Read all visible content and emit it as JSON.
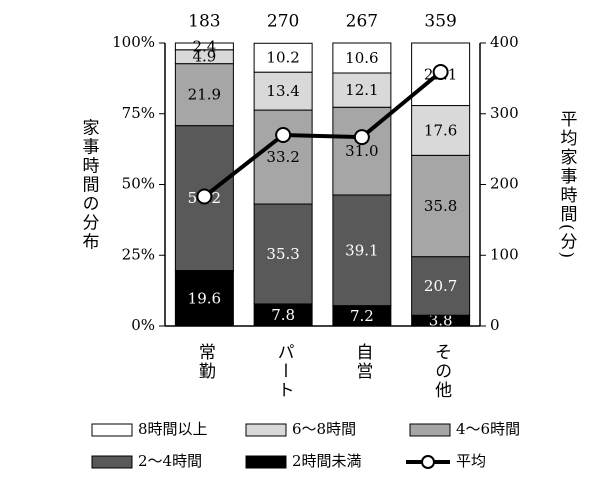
{
  "chart_data": {
    "type": "bar",
    "stacked": true,
    "y_label": "家事時間の分布",
    "y2_label": "平均家事時間(分)",
    "categories": [
      "常勤",
      "パート",
      "自営",
      "その他"
    ],
    "series": [
      {
        "name": "2時間未満",
        "color": "#000000",
        "values": [
          19.6,
          7.8,
          7.2,
          3.8
        ]
      },
      {
        "name": "2～4時間",
        "color": "#595959",
        "values": [
          51.2,
          35.3,
          39.1,
          20.7
        ]
      },
      {
        "name": "4～6時間",
        "color": "#a6a6a6",
        "values": [
          21.9,
          33.2,
          31.0,
          35.8
        ],
        "value_labels": [
          "21.9",
          "33.2",
          "31.0",
          "35.8"
        ]
      },
      {
        "name": "6～8時間",
        "color": "#d9d9d9",
        "values": [
          4.9,
          13.4,
          12.1,
          17.6
        ]
      },
      {
        "name": "8時間以上",
        "color": "#ffffff",
        "values": [
          2.4,
          10.2,
          10.6,
          22.1
        ]
      },
      {
        "name": "平均",
        "type": "line",
        "axis": "y2",
        "color": "#000000",
        "values": [
          183,
          270,
          267,
          359
        ]
      }
    ],
    "ylim": [
      0,
      100
    ],
    "yticks": [
      {
        "value": 0,
        "label": "0%"
      },
      {
        "value": 25,
        "label": "25%"
      },
      {
        "value": 50,
        "label": "50%"
      },
      {
        "value": 75,
        "label": "75%"
      },
      {
        "value": 100,
        "label": "100%"
      }
    ],
    "y2lim": [
      0,
      400
    ],
    "y2ticks": [
      0,
      100,
      200,
      300,
      400
    ]
  }
}
